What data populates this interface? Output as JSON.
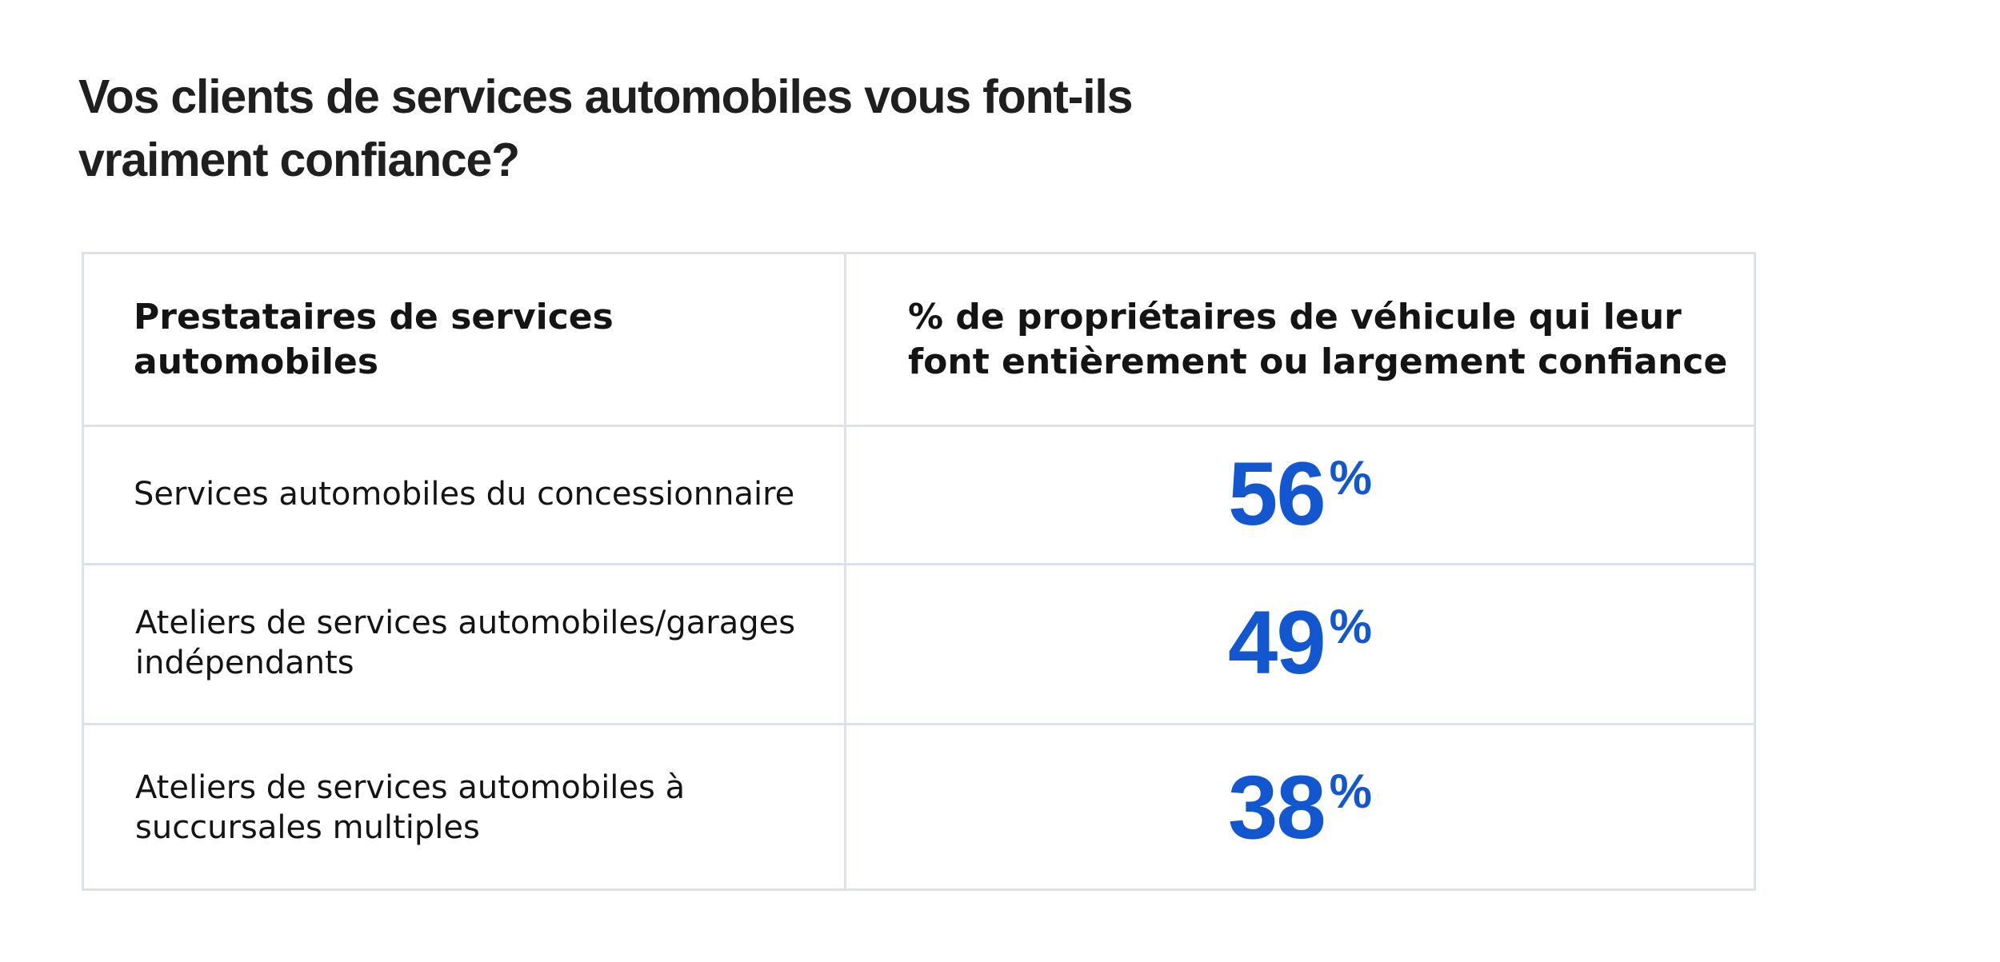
{
  "title_lines": [
    "Vos clients de services automobiles vous font-ils",
    "vraiment confiance?"
  ],
  "chart_data": {
    "type": "table",
    "title": "Vos clients de services automobiles vous font-ils vraiment confiance?",
    "columns": [
      "Prestataires de services automobiles",
      "% de propriétaires de véhicule qui leur font entièrement ou largement confiance"
    ],
    "header_lines": {
      "col1": [
        "Prestataires de services",
        "automobiles"
      ],
      "col2": [
        "% de propriétaires de véhicule qui leur",
        "font entièrement ou largement confiance"
      ]
    },
    "rows": [
      {
        "label_lines": [
          "Services automobiles du concessionnaire"
        ],
        "value": 56,
        "unit": "%"
      },
      {
        "label_lines": [
          "Ateliers de services automobiles/garages",
          "indépendants"
        ],
        "value": 49,
        "unit": "%"
      },
      {
        "label_lines": [
          "Ateliers de services automobiles à",
          "succursales multiples"
        ],
        "value": 38,
        "unit": "%"
      }
    ],
    "value_color": "#1357d0",
    "border_color": "#dde2ea"
  }
}
